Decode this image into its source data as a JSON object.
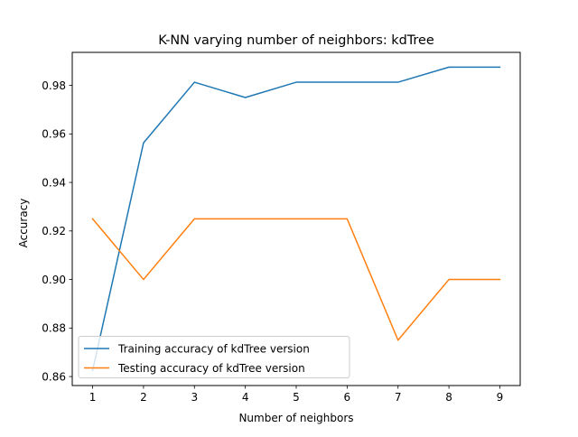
{
  "chart_data": {
    "type": "line",
    "title": "K-NN varying number of neighbors: kdTree",
    "xlabel": "Number of neighbors",
    "ylabel": "Accuracy",
    "x": [
      1,
      2,
      3,
      4,
      5,
      6,
      7,
      8,
      9
    ],
    "xlim": [
      0.6,
      9.4
    ],
    "ylim": [
      0.8563,
      0.9936
    ],
    "xticks": [
      1,
      2,
      3,
      4,
      5,
      6,
      7,
      8,
      9
    ],
    "yticks": [
      0.86,
      0.88,
      0.9,
      0.92,
      0.94,
      0.96,
      0.98
    ],
    "ytick_labels": [
      "0.86",
      "0.88",
      "0.90",
      "0.92",
      "0.94",
      "0.96",
      "0.98"
    ],
    "legend_position": "lower-left",
    "grid": false,
    "series": [
      {
        "name": "Training accuracy of kdTree version",
        "color": "#1f77b4",
        "values": [
          0.8625,
          0.9563,
          0.9813,
          0.975,
          0.9813,
          0.9813,
          0.9813,
          0.9875,
          0.9875
        ]
      },
      {
        "name": "Testing accuracy of kdTree version",
        "color": "#ff7f0e",
        "values": [
          0.925,
          0.9,
          0.925,
          0.925,
          0.925,
          0.925,
          0.875,
          0.9,
          0.9
        ]
      }
    ]
  }
}
